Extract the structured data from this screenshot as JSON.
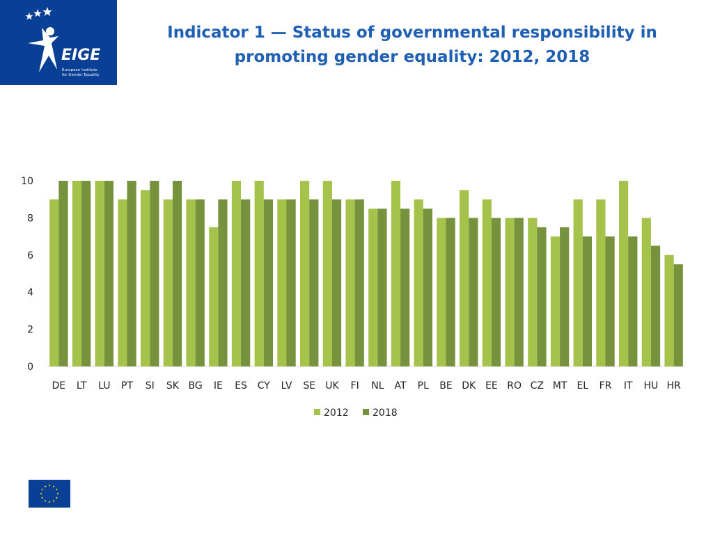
{
  "header": {
    "title_line1": "Indicator 1 — Status of governmental responsibility in",
    "title_line2": "promoting gender equality: 2012, 2018"
  },
  "logo": {
    "icon": "eige-logo-icon",
    "wordmark": "EIGE",
    "caption_line1": "European Institute",
    "caption_line2": "for Gender Equality",
    "background": "#0a3f96"
  },
  "footer": {
    "icon": "eu-flag-icon",
    "flag_color": "#0a3f96",
    "star_color": "#ffdd00"
  },
  "chart_data": {
    "type": "bar",
    "title": "Indicator 1 — Status of governmental responsibility in promoting gender equality: 2012, 2018",
    "xlabel": "",
    "ylabel": "",
    "ylim": [
      0,
      10
    ],
    "yticks": [
      0,
      2,
      4,
      6,
      8,
      10
    ],
    "grid": false,
    "legend_position": "bottom",
    "categories": [
      "DE",
      "LT",
      "LU",
      "PT",
      "SI",
      "SK",
      "BG",
      "IE",
      "ES",
      "CY",
      "LV",
      "SE",
      "UK",
      "FI",
      "NL",
      "AT",
      "PL",
      "BE",
      "DK",
      "EE",
      "RO",
      "CZ",
      "MT",
      "EL",
      "FR",
      "IT",
      "HU",
      "HR"
    ],
    "series": [
      {
        "name": "2012",
        "color": "#a5c24a",
        "values": [
          9,
          10,
          10,
          9,
          9.5,
          9,
          9,
          7.5,
          10,
          10,
          9,
          10,
          10,
          9,
          8.5,
          10,
          9,
          8,
          9.5,
          9,
          8,
          8,
          7,
          9,
          9,
          10,
          8,
          6
        ]
      },
      {
        "name": "2018",
        "color": "#76923c",
        "values": [
          10,
          10,
          10,
          10,
          10,
          10,
          9,
          9,
          9,
          9,
          9,
          9,
          9,
          9,
          8.5,
          8.5,
          8.5,
          8,
          8,
          8,
          8,
          7.5,
          7.5,
          7,
          7,
          7,
          6.5,
          5.5
        ]
      }
    ]
  }
}
